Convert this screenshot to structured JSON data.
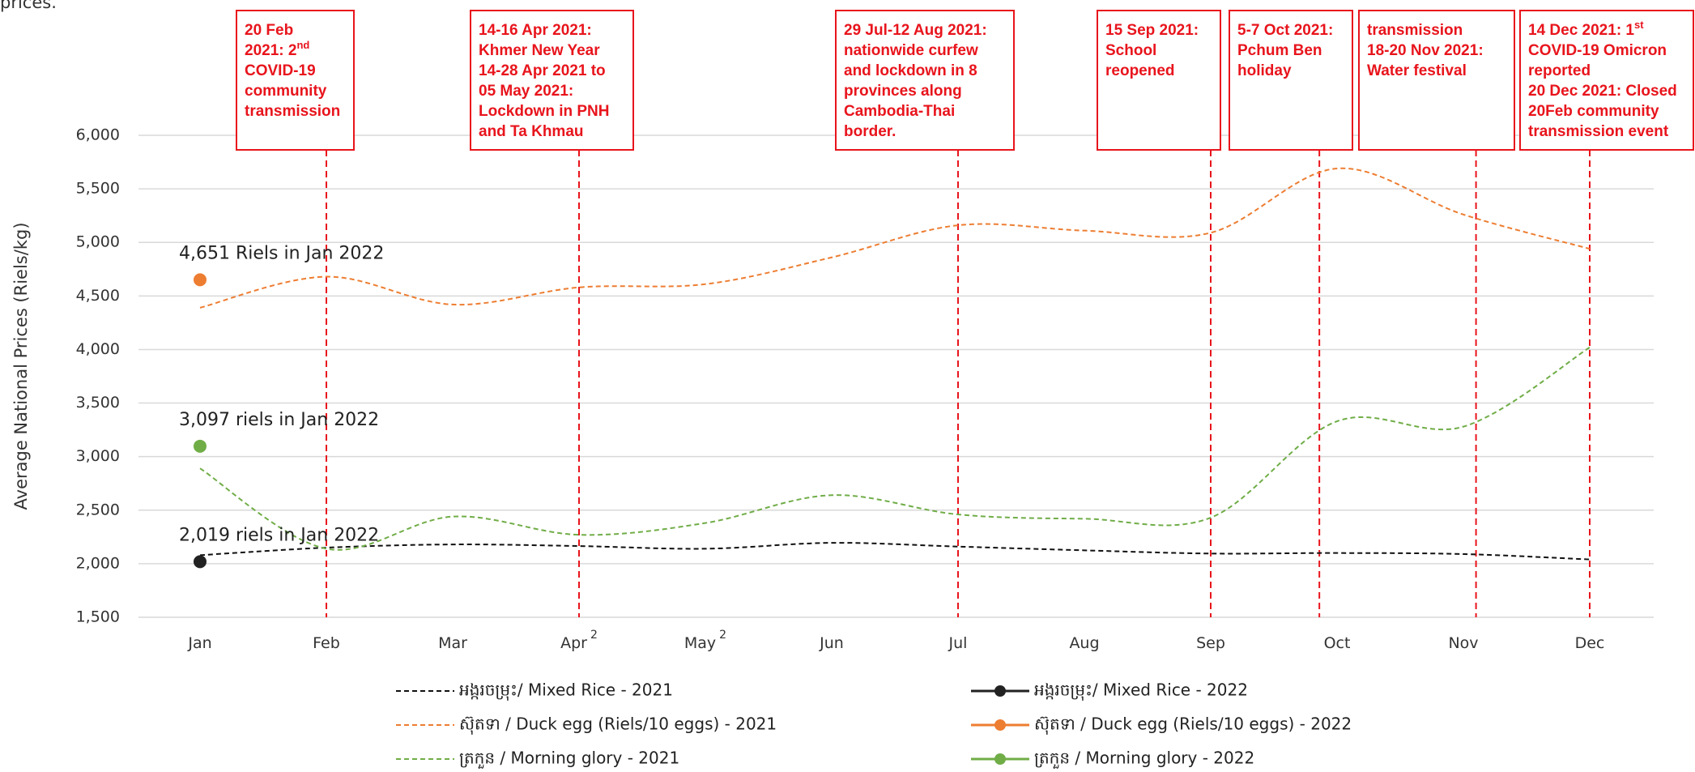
{
  "chart_data": {
    "type": "line",
    "subtitle": "prices.",
    "y_label": "Average National Prices (Riels/kg)",
    "categories": [
      "Jan",
      "Feb",
      "Mar",
      "Apr",
      "May",
      "Jun",
      "Jul",
      "Aug",
      "Sep",
      "Oct",
      "Nov",
      "Dec"
    ],
    "category_superscripts": [
      null,
      null,
      null,
      "2",
      "2",
      null,
      null,
      null,
      null,
      null,
      null,
      null
    ],
    "ylim": [
      1500,
      6000
    ],
    "yticks": [
      {
        "value": 1500,
        "label": "1,500"
      },
      {
        "value": 2000,
        "label": "2,000"
      },
      {
        "value": 2500,
        "label": "2,500"
      },
      {
        "value": 3000,
        "label": "3,000"
      },
      {
        "value": 3500,
        "label": "3,500"
      },
      {
        "value": 4000,
        "label": "4,000"
      },
      {
        "value": 4500,
        "label": "4,500"
      },
      {
        "value": 5000,
        "label": "5,000"
      },
      {
        "value": 5500,
        "label": "5,500"
      },
      {
        "value": 6000,
        "label": "6,000"
      }
    ],
    "grid": true,
    "series": [
      {
        "name": "អង្ករចម្រុះ/ Mixed Rice - 2021",
        "color": "#111111",
        "dashed": true,
        "values": [
          2080,
          2150,
          2180,
          2165,
          2140,
          2195,
          2160,
          2125,
          2095,
          2100,
          2090,
          2040
        ]
      },
      {
        "name": "ស៊ុតទា / Duck egg (Riels/10 eggs) - 2021",
        "color": "#ed7d31",
        "dashed": true,
        "values": [
          4390,
          4680,
          4420,
          4580,
          4610,
          4860,
          5160,
          5110,
          5090,
          5690,
          5260,
          4940
        ]
      },
      {
        "name": "ត្រកួន / Morning glory - 2021",
        "color": "#70ad47",
        "dashed": true,
        "values": [
          2890,
          2140,
          2440,
          2270,
          2380,
          2640,
          2460,
          2420,
          2430,
          3330,
          3280,
          4020
        ]
      },
      {
        "name": "អង្ករចម្រុះ/ Mixed Rice - 2022",
        "color": "#222222",
        "dashed": false,
        "values": [
          2019,
          null,
          null,
          null,
          null,
          null,
          null,
          null,
          null,
          null,
          null,
          null
        ],
        "value_labels": [
          "2,019 riels in Jan 2022",
          null,
          null,
          null,
          null,
          null,
          null,
          null,
          null,
          null,
          null,
          null
        ]
      },
      {
        "name": "ស៊ុតទា / Duck egg (Riels/10 eggs) - 2022",
        "color": "#ed7d31",
        "dashed": false,
        "values": [
          4651,
          null,
          null,
          null,
          null,
          null,
          null,
          null,
          null,
          null,
          null,
          null
        ],
        "value_labels": [
          "4,651 Riels in Jan 2022",
          null,
          null,
          null,
          null,
          null,
          null,
          null,
          null,
          null,
          null,
          null
        ]
      },
      {
        "name": "ត្រកួន / Morning glory - 2022",
        "color": "#70ad47",
        "dashed": false,
        "values": [
          3097,
          null,
          null,
          null,
          null,
          null,
          null,
          null,
          null,
          null,
          null,
          null
        ],
        "value_labels": [
          "3,097 riels in Jan 2022",
          null,
          null,
          null,
          null,
          null,
          null,
          null,
          null,
          null,
          null,
          null
        ]
      }
    ],
    "events": [
      {
        "x": 1,
        "lines": [
          "20 Feb",
          [
            "2021: 2",
            "nd"
          ],
          "COVID-19",
          "community",
          "transmission"
        ]
      },
      {
        "x": 3,
        "lines": [
          "14-16 Apr 2021:",
          "Khmer New Year",
          "14-28 Apr 2021 to",
          "05 May 2021:",
          "Lockdown in PNH",
          "and Ta Khmau"
        ]
      },
      {
        "x": 6,
        "lines": [
          "29 Jul-12 Aug 2021:",
          "nationwide curfew",
          "and lockdown in 8",
          "provinces along",
          "Cambodia-Thai",
          "border."
        ]
      },
      {
        "x": 8,
        "lines": [
          "15 Sep 2021:",
          "School",
          "reopened"
        ]
      },
      {
        "x": 8.86,
        "lines": [
          "5-7 Oct 2021:",
          "Pchum Ben",
          "holiday"
        ]
      },
      {
        "x": 10.1,
        "lines": [
          "transmission",
          "18-20 Nov 2021:",
          "Water festival"
        ]
      },
      {
        "x": 11,
        "lines": [
          [
            "14 Dec 2021: 1",
            "st"
          ],
          "COVID-19 Omicron",
          "reported",
          "20 Dec 2021: Closed",
          "20Feb community",
          "transmission event"
        ]
      }
    ]
  }
}
